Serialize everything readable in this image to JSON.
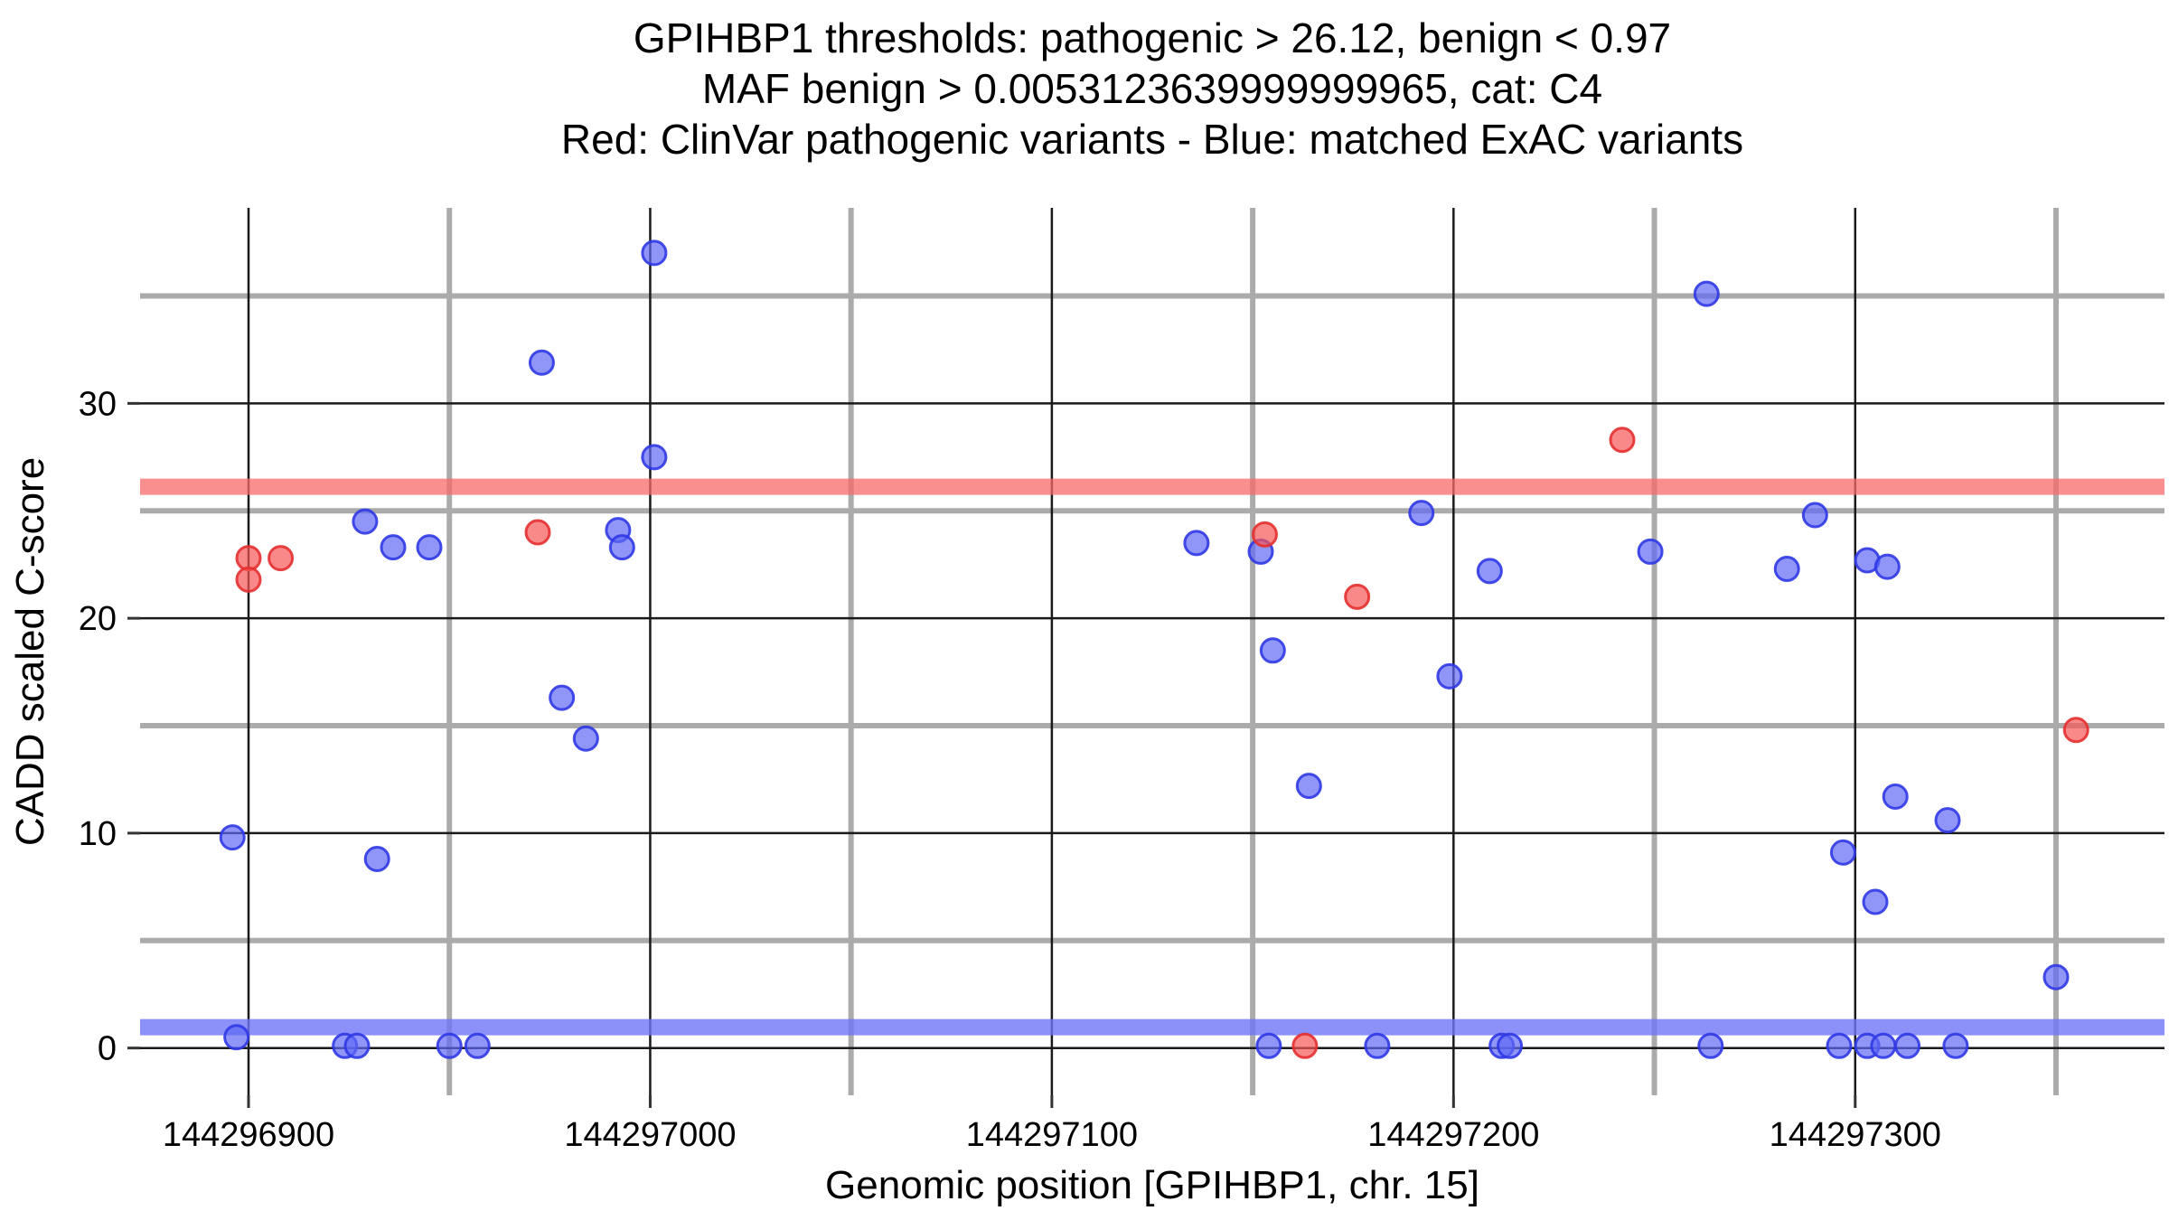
{
  "title_lines": [
    "GPIHBP1 thresholds: pathogenic > 26.12, benign < 0.97",
    "MAF benign > 0.0053123639999999965, cat: C4",
    "Red: ClinVar pathogenic variants - Blue: matched ExAC variants"
  ],
  "chart_data": {
    "type": "scatter",
    "xlabel": "Genomic position [GPIHBP1, chr. 15]",
    "ylabel": "CADD scaled C-score",
    "xlim": [
      144296873,
      144297377
    ],
    "ylim": [
      -2.2,
      39.1
    ],
    "x_major_ticks": [
      144296900,
      144297000,
      144297100,
      144297200,
      144297300
    ],
    "x_tick_labels": [
      "144296900",
      "144297000",
      "144297100",
      "144297200",
      "144297300"
    ],
    "x_minor_gridlines": [
      144296950,
      144297050,
      144297150,
      144297250,
      144297350
    ],
    "y_major_ticks": [
      0,
      10,
      20,
      30
    ],
    "y_tick_labels": [
      "0",
      "10",
      "20",
      "30"
    ],
    "y_minor_gridlines": [
      5,
      15,
      25,
      35
    ],
    "grid": {
      "major_color": "#1a1a1a",
      "minor_color": "#ababab"
    },
    "thresholds": {
      "pathogenic_value": 26.12,
      "pathogenic_color": "rgba(248, 105, 107, 0.75)",
      "benign_value": 0.97,
      "benign_color": "rgba(110, 118, 248, 0.8)"
    },
    "series": [
      {
        "name": "matched ExAC variants",
        "color_fill": "rgba(95, 106, 245, 0.7)",
        "color_stroke": "rgba(48, 56, 228, 0.9)",
        "points": [
          [
            144297001,
            37.0
          ],
          [
            144296973,
            31.9
          ],
          [
            144297001,
            27.5
          ],
          [
            144296929,
            24.5
          ],
          [
            144296936,
            23.3
          ],
          [
            144296945,
            23.3
          ],
          [
            144296992,
            24.1
          ],
          [
            144296993,
            23.3
          ],
          [
            144296978,
            16.3
          ],
          [
            144296984,
            14.4
          ],
          [
            144296896,
            9.8
          ],
          [
            144296932,
            8.8
          ],
          [
            144296897,
            0.5
          ],
          [
            144296924,
            0.1
          ],
          [
            144296927,
            0.1
          ],
          [
            144296950,
            0.1
          ],
          [
            144296957,
            0.1
          ],
          [
            144297136,
            23.5
          ],
          [
            144297152,
            23.1
          ],
          [
            144297192,
            24.9
          ],
          [
            144297155,
            18.5
          ],
          [
            144297199,
            17.3
          ],
          [
            144297164,
            12.2
          ],
          [
            144297154,
            0.1
          ],
          [
            144297181,
            0.1
          ],
          [
            144297263,
            35.1
          ],
          [
            144297249,
            23.1
          ],
          [
            144297290,
            24.8
          ],
          [
            144297283,
            22.3
          ],
          [
            144297209,
            22.2
          ],
          [
            144297303,
            22.7
          ],
          [
            144297308,
            22.4
          ],
          [
            144297310,
            11.7
          ],
          [
            144297323,
            10.6
          ],
          [
            144297297,
            9.1
          ],
          [
            144297305,
            6.8
          ],
          [
            144297350,
            3.3
          ],
          [
            144297212,
            0.1
          ],
          [
            144297214,
            0.1
          ],
          [
            144297264,
            0.1
          ],
          [
            144297296,
            0.1
          ],
          [
            144297303,
            0.1
          ],
          [
            144297307,
            0.1
          ],
          [
            144297313,
            0.1
          ],
          [
            144297325,
            0.1
          ]
        ]
      },
      {
        "name": "ClinVar pathogenic variants",
        "color_fill": "rgba(247, 86, 86, 0.7)",
        "color_stroke": "rgba(228, 48, 48, 0.9)",
        "points": [
          [
            144296900,
            22.8
          ],
          [
            144296900,
            21.8
          ],
          [
            144296908,
            22.8
          ],
          [
            144296972,
            24.0
          ],
          [
            144297153,
            23.9
          ],
          [
            144297176,
            21.0
          ],
          [
            144297163,
            0.1
          ],
          [
            144297242,
            28.3
          ],
          [
            144297355,
            14.8
          ]
        ]
      }
    ]
  }
}
